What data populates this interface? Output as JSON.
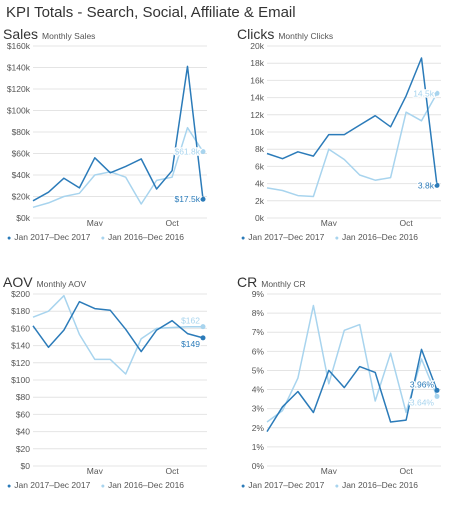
{
  "page": {
    "title": "KPI Totals - Search, Social, Affiliate & Email"
  },
  "colors": {
    "current": "#2b7bb9",
    "previous": "#a8d4ee",
    "grid": "#e4e4e4",
    "axis_text": "#555555"
  },
  "chart_data": [
    {
      "type": "line",
      "title": "Sales",
      "subtitle": "Monthly Sales",
      "x": [
        "Jan",
        "Feb",
        "Mar",
        "Apr",
        "May",
        "Jun",
        "Jul",
        "Aug",
        "Sep",
        "Oct",
        "Nov",
        "Dec"
      ],
      "x_tick_labels": [
        {
          "label": "May",
          "at": "May"
        },
        {
          "label": "Oct",
          "at": "Oct"
        }
      ],
      "y_ticks": [
        0,
        20000,
        40000,
        60000,
        80000,
        100000,
        120000,
        140000,
        160000
      ],
      "y_tick_labels": [
        "$0k",
        "$20k",
        "$40k",
        "$60k",
        "$80k",
        "$100k",
        "$120k",
        "$140k",
        "$160k"
      ],
      "ylim": [
        0,
        160000
      ],
      "grid": true,
      "legend_position": "bottom",
      "series": [
        {
          "name": "Jan 2017–Dec 2017",
          "role": "current",
          "values": [
            16000,
            24000,
            37000,
            28000,
            56000,
            42000,
            48000,
            55000,
            27000,
            44000,
            141000,
            17500
          ],
          "end_label": "$17.5k"
        },
        {
          "name": "Jan 2016–Dec 2016",
          "role": "previous",
          "values": [
            10000,
            14000,
            20000,
            23000,
            40000,
            43000,
            38000,
            13000,
            35000,
            38000,
            84000,
            61800
          ],
          "end_label": "$61.8k"
        }
      ]
    },
    {
      "type": "line",
      "title": "Clicks",
      "subtitle": "Monthly Clicks",
      "x": [
        "Jan",
        "Feb",
        "Mar",
        "Apr",
        "May",
        "Jun",
        "Jul",
        "Aug",
        "Sep",
        "Oct",
        "Nov",
        "Dec"
      ],
      "x_tick_labels": [
        {
          "label": "May",
          "at": "May"
        },
        {
          "label": "Oct",
          "at": "Oct"
        }
      ],
      "y_ticks": [
        0,
        2000,
        4000,
        6000,
        8000,
        10000,
        12000,
        14000,
        16000,
        18000,
        20000
      ],
      "y_tick_labels": [
        "0k",
        "2k",
        "4k",
        "6k",
        "8k",
        "10k",
        "12k",
        "14k",
        "16k",
        "18k",
        "20k"
      ],
      "ylim": [
        0,
        20000
      ],
      "grid": true,
      "legend_position": "bottom",
      "series": [
        {
          "name": "Jan 2017–Dec 2017",
          "role": "current",
          "values": [
            7500,
            6900,
            7700,
            7200,
            9700,
            9700,
            10800,
            11900,
            10600,
            14200,
            18600,
            3800
          ],
          "end_label": "3.8k"
        },
        {
          "name": "Jan 2016–Dec 2016",
          "role": "previous",
          "values": [
            3500,
            3200,
            2600,
            2500,
            8000,
            6800,
            5000,
            4400,
            4700,
            12300,
            11300,
            14500
          ],
          "end_label": "14.5k"
        }
      ]
    },
    {
      "type": "line",
      "title": "AOV",
      "subtitle": "Monthly AOV",
      "x": [
        "Jan",
        "Feb",
        "Mar",
        "Apr",
        "May",
        "Jun",
        "Jul",
        "Aug",
        "Sep",
        "Oct",
        "Nov",
        "Dec"
      ],
      "x_tick_labels": [
        {
          "label": "May",
          "at": "May"
        },
        {
          "label": "Oct",
          "at": "Oct"
        }
      ],
      "y_ticks": [
        0,
        20,
        40,
        60,
        80,
        100,
        120,
        140,
        160,
        180,
        200
      ],
      "y_tick_labels": [
        "$0",
        "$20",
        "$40",
        "$60",
        "$80",
        "$100",
        "$120",
        "$140",
        "$160",
        "$180",
        "$200"
      ],
      "ylim": [
        0,
        200
      ],
      "grid": true,
      "legend_position": "bottom",
      "series": [
        {
          "name": "Jan 2017–Dec 2017",
          "role": "current",
          "values": [
            163,
            138,
            158,
            191,
            183,
            181,
            159,
            133,
            158,
            169,
            154,
            149
          ],
          "end_label": "$149"
        },
        {
          "name": "Jan 2016–Dec 2016",
          "role": "previous",
          "values": [
            173,
            180,
            198,
            153,
            124,
            124,
            107,
            148,
            160,
            161,
            162,
            162
          ],
          "end_label": "$162"
        }
      ]
    },
    {
      "type": "line",
      "title": "CR",
      "subtitle": "Monthly CR",
      "x": [
        "Jan",
        "Feb",
        "Mar",
        "Apr",
        "May",
        "Jun",
        "Jul",
        "Aug",
        "Sep",
        "Oct",
        "Nov",
        "Dec"
      ],
      "x_tick_labels": [
        {
          "label": "May",
          "at": "May"
        },
        {
          "label": "Oct",
          "at": "Oct"
        }
      ],
      "y_ticks": [
        0,
        1,
        2,
        3,
        4,
        5,
        6,
        7,
        8,
        9
      ],
      "y_tick_labels": [
        "0%",
        "1%",
        "2%",
        "3%",
        "4%",
        "5%",
        "6%",
        "7%",
        "8%",
        "9%"
      ],
      "ylim": [
        0,
        9
      ],
      "grid": true,
      "legend_position": "bottom",
      "series": [
        {
          "name": "Jan 2017–Dec 2017",
          "role": "current",
          "values": [
            1.8,
            3.1,
            3.9,
            2.8,
            5.0,
            4.1,
            5.2,
            4.9,
            2.3,
            2.4,
            6.1,
            3.96
          ],
          "end_label": "3.96%"
        },
        {
          "name": "Jan 2016–Dec 2016",
          "role": "previous",
          "values": [
            2.3,
            2.9,
            4.6,
            8.4,
            4.3,
            7.1,
            7.4,
            3.4,
            5.9,
            2.8,
            5.6,
            3.64
          ],
          "end_label": "3.64%"
        }
      ]
    }
  ]
}
